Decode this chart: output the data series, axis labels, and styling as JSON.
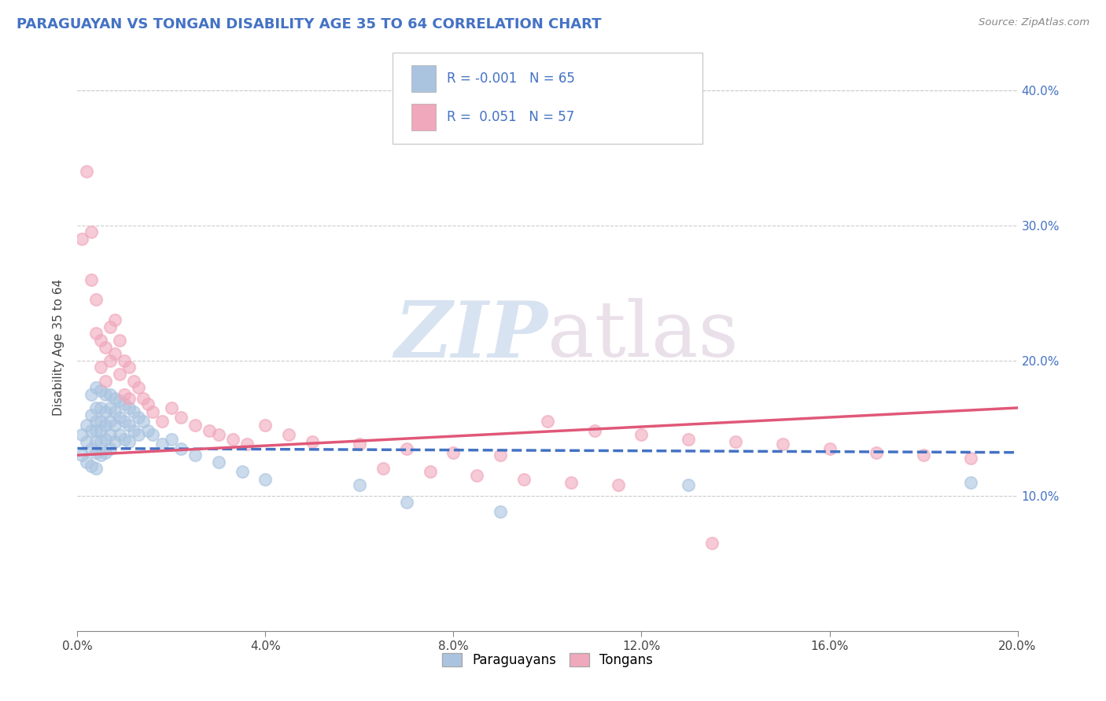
{
  "title": "PARAGUAYAN VS TONGAN DISABILITY AGE 35 TO 64 CORRELATION CHART",
  "source": "Source: ZipAtlas.com",
  "ylabel": "Disability Age 35 to 64",
  "xlim": [
    0.0,
    0.2
  ],
  "ylim": [
    0.0,
    0.42
  ],
  "yticks": [
    0.1,
    0.2,
    0.3,
    0.4
  ],
  "xticks": [
    0.0,
    0.04,
    0.08,
    0.12,
    0.16,
    0.2
  ],
  "blue_R": -0.001,
  "blue_N": 65,
  "pink_R": 0.051,
  "pink_N": 57,
  "blue_color": "#aac4e0",
  "pink_color": "#f0a8bc",
  "blue_line_color": "#4472c4",
  "pink_line_color": "#e05878",
  "legend_label_blue": "Paraguayans",
  "legend_label_pink": "Tongans",
  "blue_x": [
    0.001,
    0.001,
    0.002,
    0.002,
    0.002,
    0.003,
    0.003,
    0.003,
    0.003,
    0.003,
    0.004,
    0.004,
    0.004,
    0.004,
    0.004,
    0.004,
    0.004,
    0.005,
    0.005,
    0.005,
    0.005,
    0.005,
    0.005,
    0.006,
    0.006,
    0.006,
    0.006,
    0.006,
    0.007,
    0.007,
    0.007,
    0.007,
    0.007,
    0.008,
    0.008,
    0.008,
    0.008,
    0.009,
    0.009,
    0.009,
    0.01,
    0.01,
    0.01,
    0.011,
    0.011,
    0.011,
    0.012,
    0.012,
    0.013,
    0.013,
    0.014,
    0.015,
    0.016,
    0.018,
    0.02,
    0.022,
    0.025,
    0.03,
    0.035,
    0.04,
    0.06,
    0.07,
    0.09,
    0.13,
    0.19
  ],
  "blue_y": [
    0.145,
    0.13,
    0.152,
    0.14,
    0.125,
    0.175,
    0.16,
    0.148,
    0.135,
    0.122,
    0.18,
    0.165,
    0.155,
    0.148,
    0.14,
    0.132,
    0.12,
    0.178,
    0.165,
    0.155,
    0.148,
    0.14,
    0.13,
    0.175,
    0.162,
    0.152,
    0.142,
    0.132,
    0.175,
    0.165,
    0.155,
    0.145,
    0.135,
    0.172,
    0.162,
    0.152,
    0.14,
    0.17,
    0.158,
    0.145,
    0.168,
    0.155,
    0.142,
    0.165,
    0.152,
    0.14,
    0.162,
    0.148,
    0.158,
    0.145,
    0.155,
    0.148,
    0.145,
    0.138,
    0.142,
    0.135,
    0.13,
    0.125,
    0.118,
    0.112,
    0.108,
    0.095,
    0.088,
    0.108,
    0.11
  ],
  "pink_x": [
    0.001,
    0.002,
    0.003,
    0.003,
    0.004,
    0.004,
    0.005,
    0.005,
    0.006,
    0.006,
    0.007,
    0.007,
    0.008,
    0.008,
    0.009,
    0.009,
    0.01,
    0.01,
    0.011,
    0.011,
    0.012,
    0.013,
    0.014,
    0.015,
    0.016,
    0.018,
    0.02,
    0.022,
    0.025,
    0.028,
    0.03,
    0.033,
    0.036,
    0.04,
    0.045,
    0.05,
    0.06,
    0.07,
    0.08,
    0.09,
    0.1,
    0.11,
    0.12,
    0.13,
    0.14,
    0.15,
    0.16,
    0.17,
    0.18,
    0.19,
    0.065,
    0.075,
    0.085,
    0.095,
    0.105,
    0.115,
    0.135
  ],
  "pink_y": [
    0.29,
    0.34,
    0.295,
    0.26,
    0.245,
    0.22,
    0.215,
    0.195,
    0.21,
    0.185,
    0.225,
    0.2,
    0.23,
    0.205,
    0.215,
    0.19,
    0.2,
    0.175,
    0.195,
    0.172,
    0.185,
    0.18,
    0.172,
    0.168,
    0.162,
    0.155,
    0.165,
    0.158,
    0.152,
    0.148,
    0.145,
    0.142,
    0.138,
    0.152,
    0.145,
    0.14,
    0.138,
    0.135,
    0.132,
    0.13,
    0.155,
    0.148,
    0.145,
    0.142,
    0.14,
    0.138,
    0.135,
    0.132,
    0.13,
    0.128,
    0.12,
    0.118,
    0.115,
    0.112,
    0.11,
    0.108,
    0.065
  ],
  "blue_trend_x": [
    0.0,
    0.2
  ],
  "blue_trend_y": [
    0.135,
    0.132
  ],
  "pink_trend_x": [
    0.0,
    0.2
  ],
  "pink_trend_y": [
    0.13,
    0.165
  ],
  "watermark_zip": "ZIP",
  "watermark_atlas": "atlas",
  "background_color": "#ffffff",
  "grid_color": "#cccccc"
}
